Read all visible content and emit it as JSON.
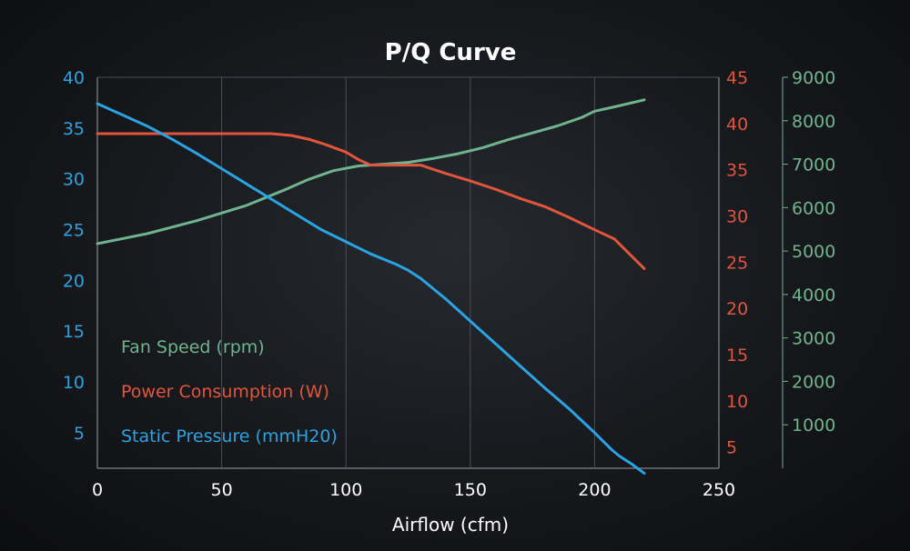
{
  "chart_data": {
    "type": "line",
    "title": "P/Q Curve",
    "xlabel": "Airflow (cfm)",
    "xlim": [
      0,
      250
    ],
    "x_ticks": [
      0,
      50,
      100,
      150,
      200,
      250
    ],
    "grid": "vertical",
    "legend_placement": "bottom-left",
    "axes": {
      "left": {
        "series": "pressure",
        "ylim": [
          1.5,
          40
        ],
        "ticks": [
          5,
          10,
          15,
          20,
          25,
          30,
          35,
          40
        ],
        "color": "#2aa3e3"
      },
      "right1": {
        "series": "power",
        "ylim": [
          2.7,
          45
        ],
        "ticks": [
          5,
          10,
          15,
          20,
          25,
          30,
          35,
          40,
          45
        ],
        "color": "#e0553b"
      },
      "right2": {
        "series": "speed",
        "ylim": [
          0,
          9000
        ],
        "ticks": [
          1000,
          2000,
          3000,
          4000,
          5000,
          6000,
          7000,
          8000,
          9000
        ],
        "color": "#6fb48f"
      }
    },
    "series": [
      {
        "key": "speed",
        "name": "Fan Speed (rpm)",
        "axis": "right2",
        "color": "#6fb48f",
        "x": [
          0,
          20,
          40,
          60,
          75,
          85,
          95,
          105,
          115,
          125,
          135,
          145,
          155,
          165,
          175,
          185,
          195,
          200,
          208,
          220
        ],
        "y": [
          5170,
          5400,
          5700,
          6050,
          6400,
          6650,
          6850,
          6960,
          7000,
          7040,
          7130,
          7240,
          7380,
          7560,
          7720,
          7880,
          8080,
          8220,
          8320,
          8480
        ]
      },
      {
        "key": "power",
        "name": "Power Consumption (W)",
        "axis": "right1",
        "color": "#e0553b",
        "x": [
          0,
          20,
          40,
          60,
          70,
          78,
          85,
          92,
          100,
          105,
          110,
          120,
          130,
          140,
          150,
          160,
          170,
          180,
          190,
          200,
          208,
          214,
          220
        ],
        "y": [
          38.9,
          38.9,
          38.9,
          38.9,
          38.9,
          38.7,
          38.3,
          37.7,
          36.9,
          36.1,
          35.5,
          35.5,
          35.5,
          34.6,
          33.8,
          32.9,
          31.9,
          31.0,
          29.8,
          28.5,
          27.5,
          25.9,
          24.3
        ]
      },
      {
        "key": "pressure",
        "name": "Static Pressure (mmH20)",
        "axis": "left",
        "color": "#2aa3e3",
        "x": [
          0,
          10,
          20,
          30,
          40,
          50,
          60,
          70,
          80,
          90,
          100,
          110,
          120,
          125,
          130,
          140,
          150,
          160,
          170,
          180,
          190,
          200,
          207,
          210,
          215,
          220
        ],
        "y": [
          37.4,
          36.3,
          35.2,
          33.9,
          32.5,
          31.0,
          29.5,
          28.0,
          26.5,
          25.0,
          23.8,
          22.6,
          21.6,
          21.0,
          20.2,
          18.2,
          16.0,
          13.8,
          11.6,
          9.4,
          7.3,
          5.0,
          3.3,
          2.7,
          1.9,
          1.0
        ]
      }
    ]
  }
}
